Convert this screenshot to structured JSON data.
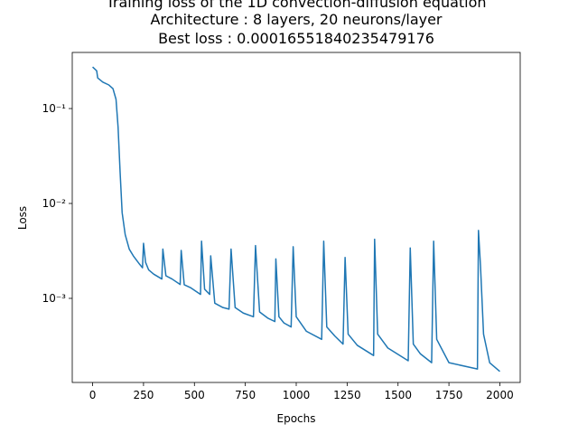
{
  "chart_data": {
    "type": "line",
    "title_lines": [
      "Training loss of the 1D convection-diffusion equation",
      "Architecture : 8 layers, 20 neurons/layer",
      "Best loss : 0.00016551840235479176"
    ],
    "xlabel": "Epochs",
    "ylabel": "Loss",
    "log_y": true,
    "xlim": [
      -100,
      2100
    ],
    "ylim": [
      0.00013,
      0.39
    ],
    "xticks": [
      0,
      250,
      500,
      750,
      1000,
      1250,
      1500,
      1750,
      2000
    ],
    "yticks": [
      {
        "value": 0.001,
        "label": "10⁻³"
      },
      {
        "value": 0.01,
        "label": "10⁻²"
      },
      {
        "value": 0.1,
        "label": "10⁻¹"
      }
    ],
    "x": [
      0,
      20,
      25,
      50,
      80,
      100,
      115,
      125,
      135,
      145,
      160,
      180,
      200,
      230,
      245,
      250,
      260,
      275,
      300,
      340,
      345,
      360,
      390,
      430,
      435,
      450,
      480,
      530,
      535,
      550,
      575,
      580,
      600,
      640,
      670,
      680,
      700,
      740,
      790,
      800,
      820,
      860,
      895,
      900,
      915,
      940,
      975,
      985,
      1000,
      1050,
      1125,
      1135,
      1150,
      1190,
      1230,
      1240,
      1255,
      1300,
      1380,
      1385,
      1400,
      1450,
      1550,
      1560,
      1575,
      1610,
      1665,
      1675,
      1690,
      1750,
      1890,
      1895,
      1905,
      1920,
      1950,
      2000
    ],
    "series": [
      {
        "name": "Loss",
        "color": "#1f77b4",
        "values": [
          0.274,
          0.25,
          0.21,
          0.19,
          0.177,
          0.162,
          0.125,
          0.064,
          0.0215,
          0.008,
          0.0047,
          0.0033,
          0.0028,
          0.0023,
          0.0021,
          0.0038,
          0.0024,
          0.002,
          0.0018,
          0.0016,
          0.0033,
          0.00173,
          0.0016,
          0.0014,
          0.0032,
          0.00139,
          0.0013,
          0.0011,
          0.004,
          0.00125,
          0.0011,
          0.0028,
          0.00089,
          0.0008,
          0.00077,
          0.0033,
          0.0008,
          0.0007,
          0.00064,
          0.0036,
          0.00072,
          0.00062,
          0.00057,
          0.0026,
          0.00064,
          0.00055,
          0.0005,
          0.0035,
          0.00064,
          0.00045,
          0.00037,
          0.004,
          0.0005,
          0.0004,
          0.00033,
          0.0027,
          0.00042,
          0.00032,
          0.00025,
          0.0042,
          0.00042,
          0.0003,
          0.00022,
          0.0034,
          0.00033,
          0.00026,
          0.00021,
          0.004,
          0.00037,
          0.00021,
          0.00018,
          0.0052,
          0.0022,
          0.00042,
          0.00021,
          0.00017
        ]
      }
    ]
  }
}
